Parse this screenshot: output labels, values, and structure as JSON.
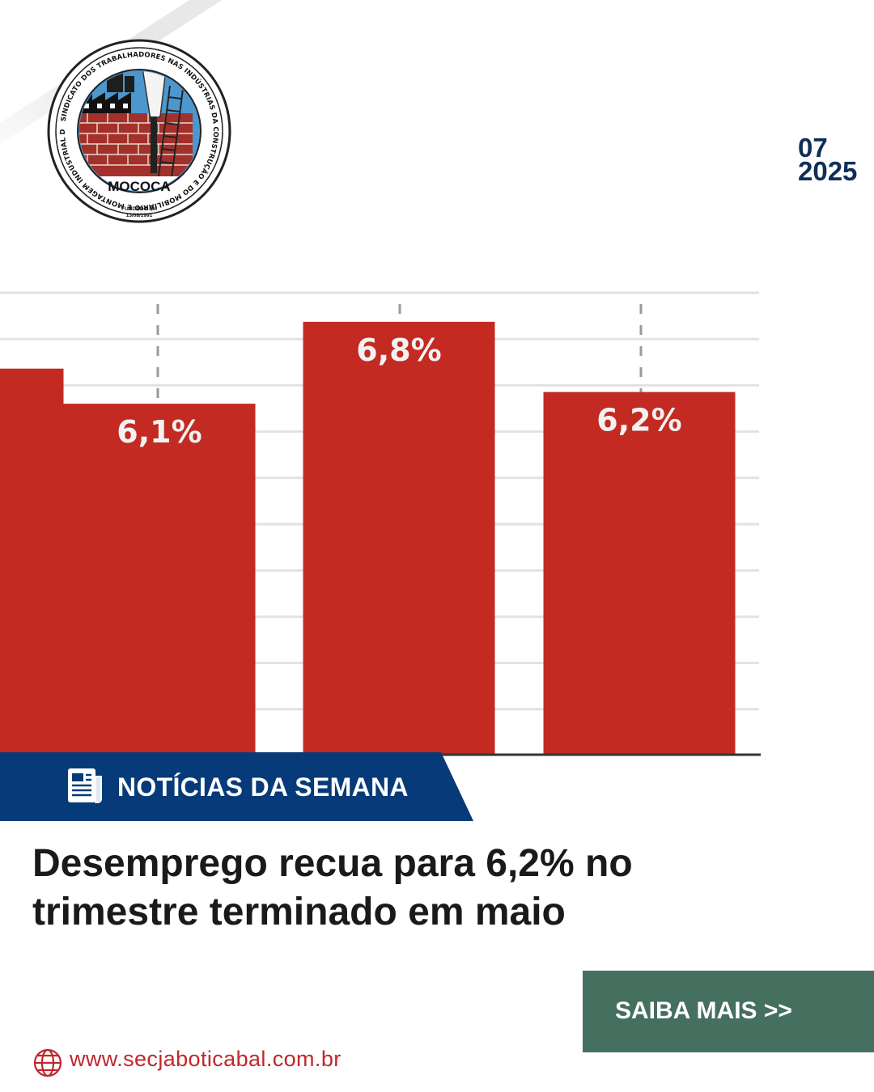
{
  "logo": {
    "ring_text": "SINDICATO DOS TRABALHADORES NAS INDÚSTRIAS DA CONSTRUÇÃO E DO MOBILIÁRIO E MONTAGEM INDUSTRIAL DE MOCOCA",
    "city": "MOCOCA",
    "founded_line1": "FUNDADO EM",
    "founded_line2": "13/08/1991"
  },
  "date": {
    "month": "07",
    "year": "2025"
  },
  "chart_data": {
    "type": "bar",
    "categories": [
      "",
      "",
      "",
      ""
    ],
    "values": [
      6.4,
      6.1,
      6.8,
      6.2
    ],
    "labels": [
      "",
      "6,1%",
      "6,8%",
      "6,2%"
    ],
    "ylim": [
      3.1,
      7.2
    ],
    "grid": true,
    "bar_color": "#c32a22"
  },
  "banner": {
    "label": "NOTÍCIAS DA SEMANA",
    "icon": "newspaper-icon"
  },
  "headline": {
    "line1": "Desemprego recua para 6,2% no",
    "line2": "trimestre terminado em maio"
  },
  "cta": {
    "label": "SAIBA MAIS >>"
  },
  "footer": {
    "icon": "globe-icon",
    "website": "www.secjaboticabal.com.br"
  },
  "colors": {
    "navy": "#073a78",
    "bar_red": "#c32a22",
    "cta_green": "#456f5f",
    "date_navy": "#0f2f57",
    "link_red": "#c0272d"
  }
}
